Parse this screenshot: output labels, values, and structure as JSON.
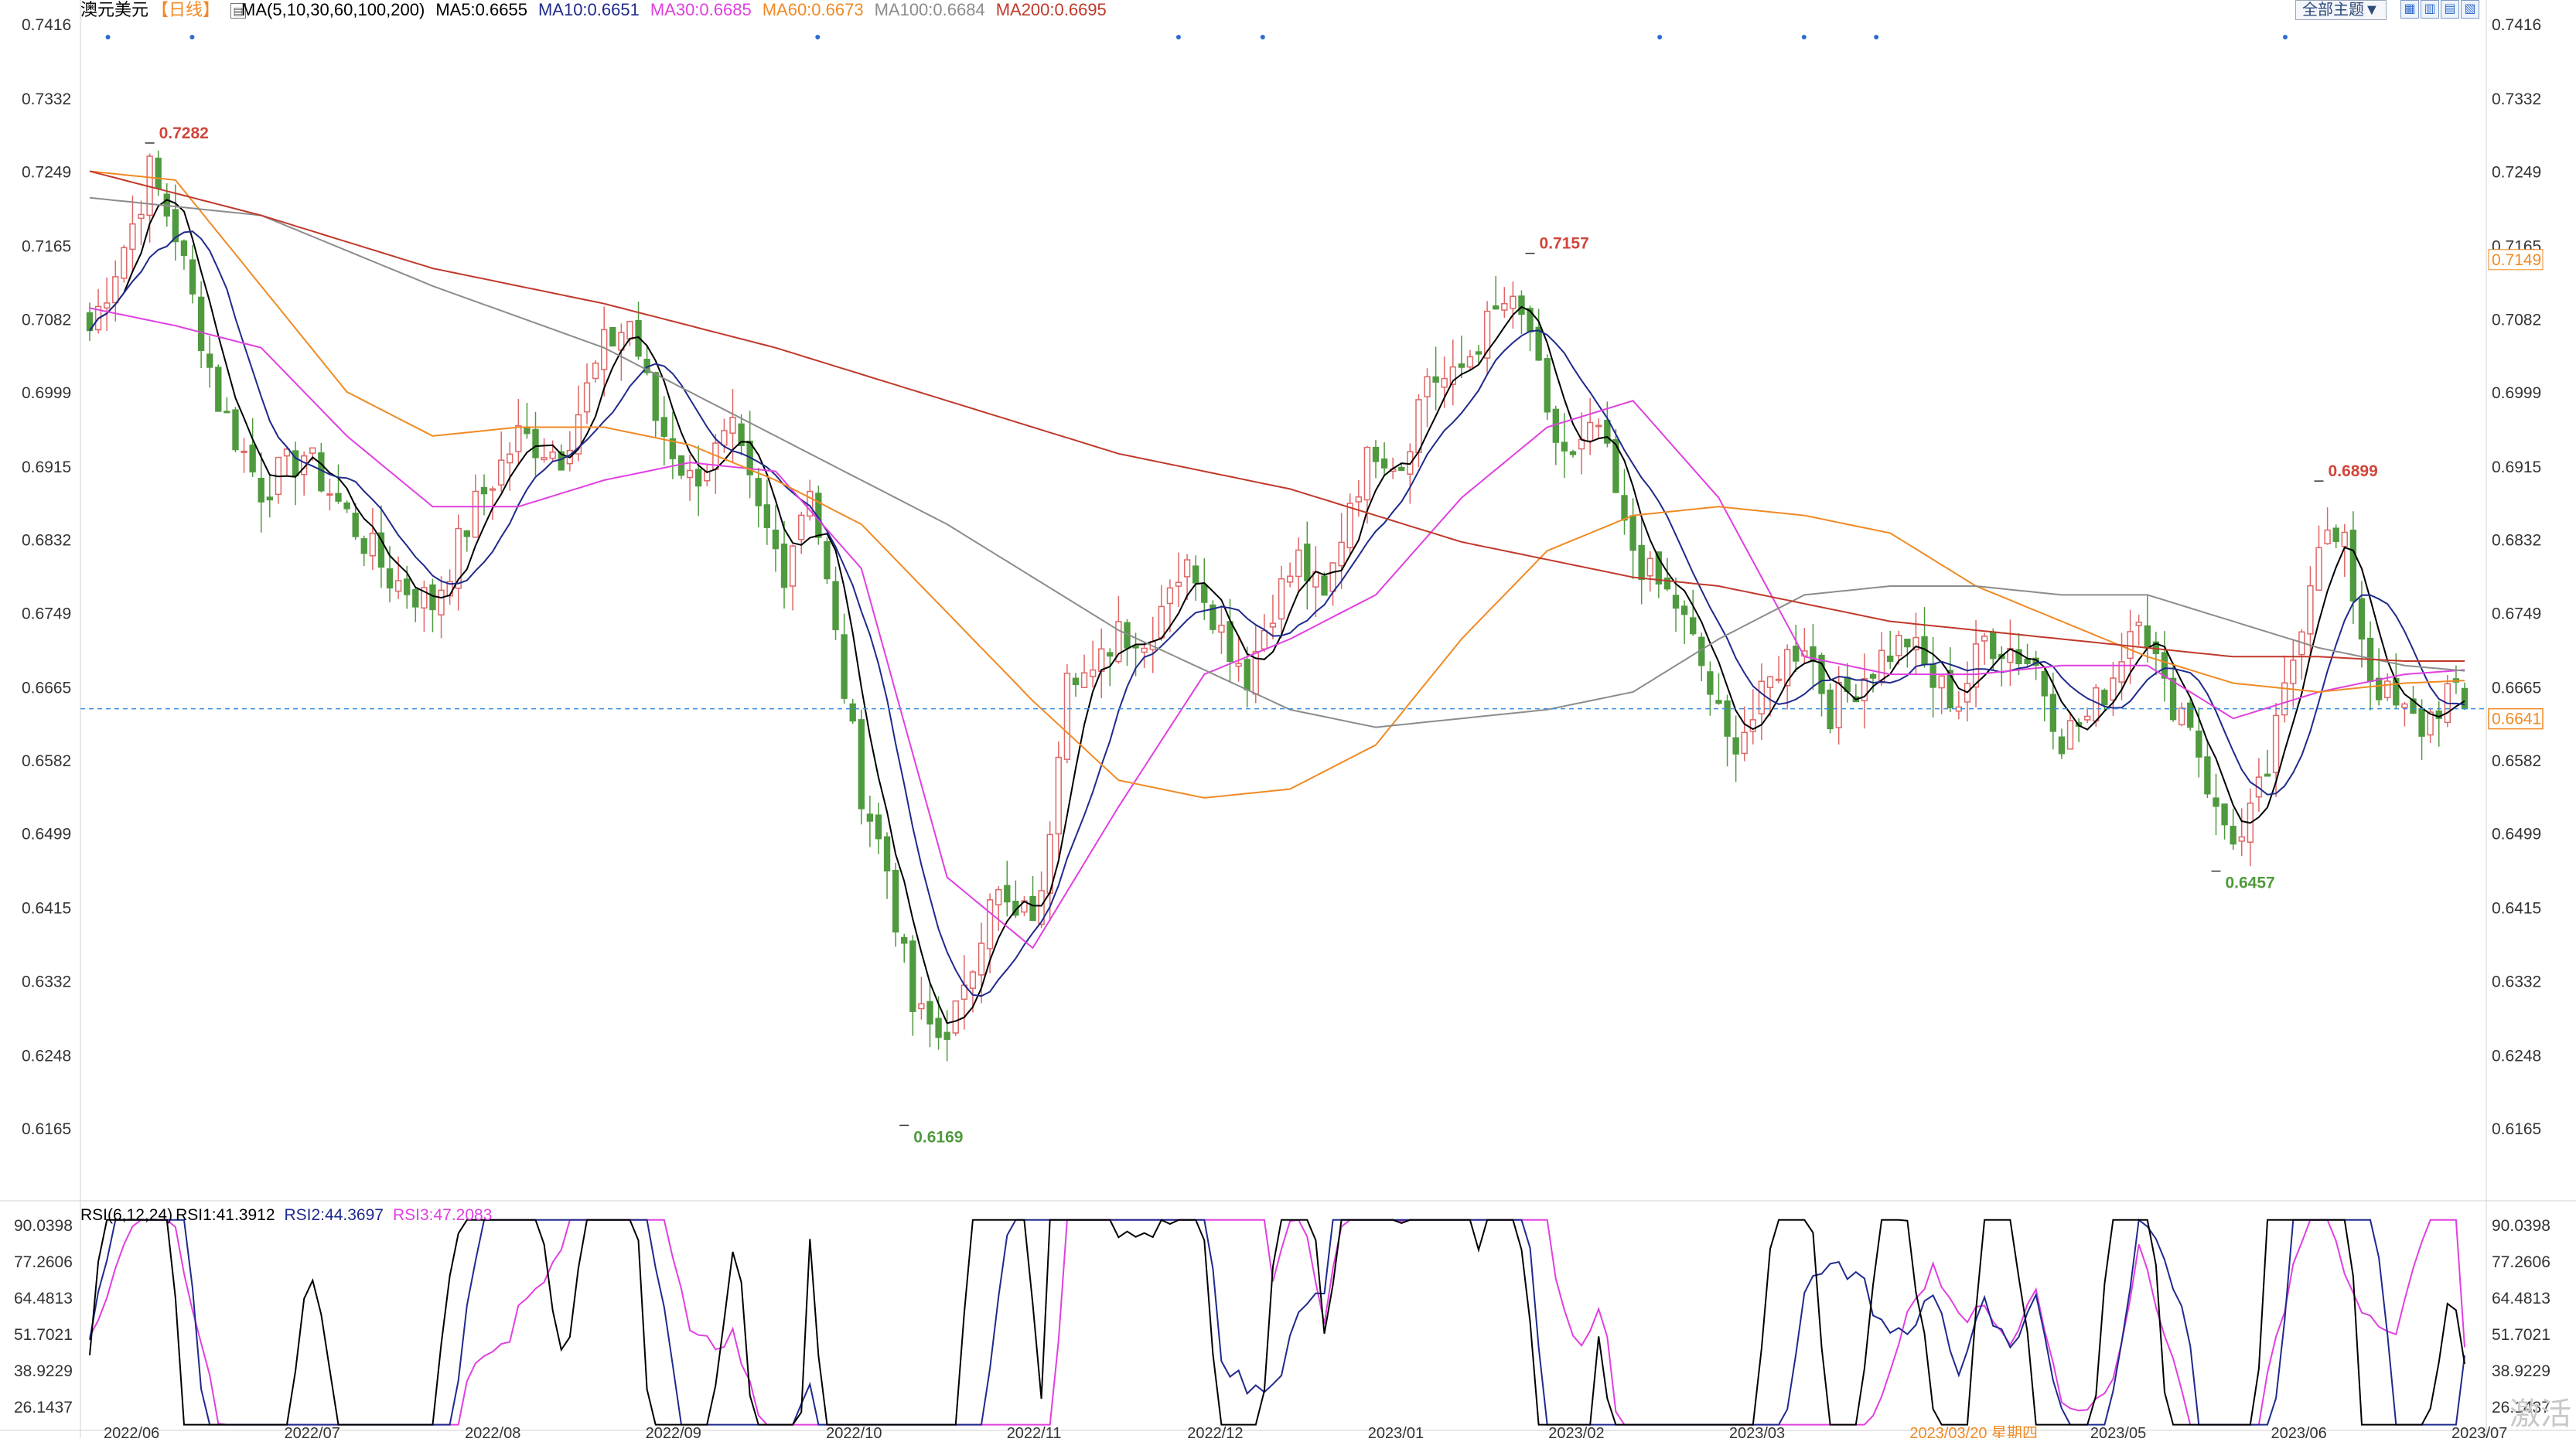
{
  "header": {
    "symbol": "澳元美元",
    "period": "【日线】",
    "ma_title": "MA(5,10,30,60,100,200)",
    "ma5": "MA5:0.6655",
    "ma10": "MA10:0.6651",
    "ma30": "MA30:0.6685",
    "ma60": "MA60:0.6673",
    "ma100": "MA100:0.6684",
    "ma200": "MA200:0.6695",
    "theme_button": "全部主题▼"
  },
  "colors": {
    "up": "#e06666",
    "down": "#4f9a3e",
    "ma5": "#000000",
    "ma10": "#1f2a8c",
    "ma30": "#e040e0",
    "ma60": "#f08a24",
    "ma100": "#8c8c8c",
    "ma200": "#c0392b",
    "rsi1": "#000000",
    "rsi2": "#1f2a8c",
    "rsi3": "#e040e0",
    "current": "#f08a24",
    "grid": "#e3e3e3"
  },
  "chart_data": [
    {
      "type": "candlestick",
      "series_names": [
        "MA5",
        "MA10",
        "MA30",
        "MA60",
        "MA100",
        "MA200"
      ],
      "y_ticks": [
        "0.7416",
        "0.7332",
        "0.7249",
        "0.7165",
        "0.7082",
        "0.6999",
        "0.6915",
        "0.6832",
        "0.6749",
        "0.6665",
        "0.6582",
        "0.6499",
        "0.6415",
        "0.6332",
        "0.6248",
        "0.6165"
      ],
      "ylim": [
        0.6165,
        0.7416
      ],
      "x_ticks": [
        "2022/06",
        "2022/07",
        "2022/08",
        "2022/09",
        "2022/10",
        "2022/11",
        "2022/12",
        "2023/01",
        "2023/02",
        "2023/03",
        "2023/03/20 星期四",
        "2023/05",
        "2023/06",
        "2023/07"
      ],
      "annotations": [
        {
          "label": "0.7282",
          "value": 0.7282,
          "date_index": 7,
          "kind": "high"
        },
        {
          "label": "0.7157",
          "value": 0.7157,
          "date_index": 168,
          "kind": "high"
        },
        {
          "label": "0.6899",
          "value": 0.6899,
          "date_index": 260,
          "kind": "high"
        },
        {
          "label": "0.6169",
          "value": 0.6169,
          "date_index": 95,
          "kind": "low"
        },
        {
          "label": "0.6457",
          "value": 0.6457,
          "date_index": 248,
          "kind": "low"
        }
      ],
      "current_label": "0.6641",
      "ma60_label": "0.7149",
      "close_path": [
        [
          0,
          0.707
        ],
        [
          5,
          0.719
        ],
        [
          7,
          0.725
        ],
        [
          10,
          0.718
        ],
        [
          15,
          0.699
        ],
        [
          20,
          0.689
        ],
        [
          25,
          0.693
        ],
        [
          30,
          0.686
        ],
        [
          35,
          0.679
        ],
        [
          40,
          0.676
        ],
        [
          45,
          0.687
        ],
        [
          50,
          0.695
        ],
        [
          55,
          0.693
        ],
        [
          60,
          0.705
        ],
        [
          63,
          0.708
        ],
        [
          66,
          0.697
        ],
        [
          70,
          0.69
        ],
        [
          75,
          0.695
        ],
        [
          78,
          0.686
        ],
        [
          81,
          0.68
        ],
        [
          84,
          0.69
        ],
        [
          87,
          0.672
        ],
        [
          90,
          0.655
        ],
        [
          93,
          0.646
        ],
        [
          96,
          0.63
        ],
        [
          99,
          0.627
        ],
        [
          102,
          0.631
        ],
        [
          105,
          0.644
        ],
        [
          108,
          0.64
        ],
        [
          111,
          0.642
        ],
        [
          114,
          0.67
        ],
        [
          117,
          0.667
        ],
        [
          120,
          0.674
        ],
        [
          123,
          0.671
        ],
        [
          126,
          0.679
        ],
        [
          129,
          0.68
        ],
        [
          132,
          0.673
        ],
        [
          135,
          0.668
        ],
        [
          138,
          0.676
        ],
        [
          141,
          0.681
        ],
        [
          144,
          0.676
        ],
        [
          147,
          0.688
        ],
        [
          150,
          0.694
        ],
        [
          153,
          0.692
        ],
        [
          156,
          0.702
        ],
        [
          159,
          0.701
        ],
        [
          162,
          0.706
        ],
        [
          165,
          0.71
        ],
        [
          168,
          0.707
        ],
        [
          170,
          0.696
        ],
        [
          173,
          0.692
        ],
        [
          176,
          0.696
        ],
        [
          179,
          0.684
        ],
        [
          182,
          0.679
        ],
        [
          185,
          0.676
        ],
        [
          188,
          0.669
        ],
        [
          191,
          0.66
        ],
        [
          194,
          0.663
        ],
        [
          197,
          0.669
        ],
        [
          200,
          0.672
        ],
        [
          203,
          0.664
        ],
        [
          206,
          0.667
        ],
        [
          209,
          0.67
        ],
        [
          212,
          0.672
        ],
        [
          215,
          0.667
        ],
        [
          218,
          0.665
        ],
        [
          221,
          0.672
        ],
        [
          224,
          0.671
        ],
        [
          227,
          0.669
        ],
        [
          230,
          0.661
        ],
        [
          233,
          0.663
        ],
        [
          236,
          0.668
        ],
        [
          239,
          0.676
        ],
        [
          242,
          0.666
        ],
        [
          245,
          0.663
        ],
        [
          248,
          0.652
        ],
        [
          251,
          0.649
        ],
        [
          254,
          0.657
        ],
        [
          257,
          0.67
        ],
        [
          260,
          0.684
        ],
        [
          263,
          0.682
        ],
        [
          266,
          0.668
        ],
        [
          269,
          0.664
        ],
        [
          272,
          0.662
        ],
        [
          275,
          0.666
        ],
        [
          277,
          0.6641
        ]
      ],
      "ma_paths": {
        "MA30": [
          [
            0,
            0.7095
          ],
          [
            10,
            0.7075
          ],
          [
            20,
            0.705
          ],
          [
            30,
            0.695
          ],
          [
            40,
            0.687
          ],
          [
            50,
            0.687
          ],
          [
            60,
            0.69
          ],
          [
            70,
            0.692
          ],
          [
            80,
            0.691
          ],
          [
            90,
            0.68
          ],
          [
            100,
            0.645
          ],
          [
            110,
            0.637
          ],
          [
            120,
            0.653
          ],
          [
            130,
            0.668
          ],
          [
            140,
            0.672
          ],
          [
            150,
            0.677
          ],
          [
            160,
            0.688
          ],
          [
            170,
            0.696
          ],
          [
            180,
            0.699
          ],
          [
            190,
            0.688
          ],
          [
            200,
            0.67
          ],
          [
            210,
            0.668
          ],
          [
            220,
            0.668
          ],
          [
            230,
            0.669
          ],
          [
            240,
            0.669
          ],
          [
            250,
            0.663
          ],
          [
            260,
            0.666
          ],
          [
            270,
            0.668
          ],
          [
            277,
            0.6685
          ]
        ],
        "MA60": [
          [
            0,
            0.725
          ],
          [
            10,
            0.724
          ],
          [
            20,
            0.712
          ],
          [
            30,
            0.7
          ],
          [
            40,
            0.695
          ],
          [
            50,
            0.696
          ],
          [
            60,
            0.696
          ],
          [
            70,
            0.694
          ],
          [
            80,
            0.69
          ],
          [
            90,
            0.685
          ],
          [
            100,
            0.675
          ],
          [
            110,
            0.665
          ],
          [
            120,
            0.656
          ],
          [
            130,
            0.654
          ],
          [
            140,
            0.655
          ],
          [
            150,
            0.66
          ],
          [
            160,
            0.672
          ],
          [
            170,
            0.682
          ],
          [
            180,
            0.686
          ],
          [
            190,
            0.687
          ],
          [
            200,
            0.686
          ],
          [
            210,
            0.684
          ],
          [
            220,
            0.678
          ],
          [
            230,
            0.674
          ],
          [
            240,
            0.67
          ],
          [
            250,
            0.667
          ],
          [
            260,
            0.666
          ],
          [
            270,
            0.667
          ],
          [
            277,
            0.6673
          ]
        ],
        "MA100": [
          [
            0,
            0.722
          ],
          [
            20,
            0.72
          ],
          [
            40,
            0.712
          ],
          [
            60,
            0.705
          ],
          [
            80,
            0.695
          ],
          [
            100,
            0.685
          ],
          [
            120,
            0.673
          ],
          [
            140,
            0.664
          ],
          [
            150,
            0.662
          ],
          [
            160,
            0.663
          ],
          [
            170,
            0.664
          ],
          [
            180,
            0.666
          ],
          [
            190,
            0.672
          ],
          [
            200,
            0.677
          ],
          [
            210,
            0.678
          ],
          [
            220,
            0.678
          ],
          [
            230,
            0.677
          ],
          [
            240,
            0.677
          ],
          [
            250,
            0.674
          ],
          [
            260,
            0.671
          ],
          [
            270,
            0.669
          ],
          [
            277,
            0.6684
          ]
        ],
        "MA200": [
          [
            0,
            0.725
          ],
          [
            20,
            0.72
          ],
          [
            40,
            0.714
          ],
          [
            60,
            0.71
          ],
          [
            80,
            0.705
          ],
          [
            100,
            0.699
          ],
          [
            120,
            0.693
          ],
          [
            140,
            0.689
          ],
          [
            160,
            0.683
          ],
          [
            170,
            0.681
          ],
          [
            180,
            0.679
          ],
          [
            190,
            0.678
          ],
          [
            200,
            0.676
          ],
          [
            210,
            0.674
          ],
          [
            220,
            0.673
          ],
          [
            230,
            0.672
          ],
          [
            240,
            0.671
          ],
          [
            250,
            0.67
          ],
          [
            260,
            0.67
          ],
          [
            270,
            0.6695
          ],
          [
            277,
            0.6695
          ]
        ]
      },
      "total_bars": 278
    },
    {
      "type": "line",
      "title": "RSI(6,12,24)",
      "series": [
        {
          "name": "RSI1:41.3912",
          "value": 41.3912
        },
        {
          "name": "RSI2:44.3697",
          "value": 44.3697
        },
        {
          "name": "RSI3:47.2083",
          "value": 47.2083
        }
      ],
      "y_ticks": [
        "90.0398",
        "77.2606",
        "64.4813",
        "51.7021",
        "38.9229",
        "26.1437"
      ],
      "ylim": [
        26.1437,
        90.0398
      ]
    }
  ],
  "watermark": "激活"
}
